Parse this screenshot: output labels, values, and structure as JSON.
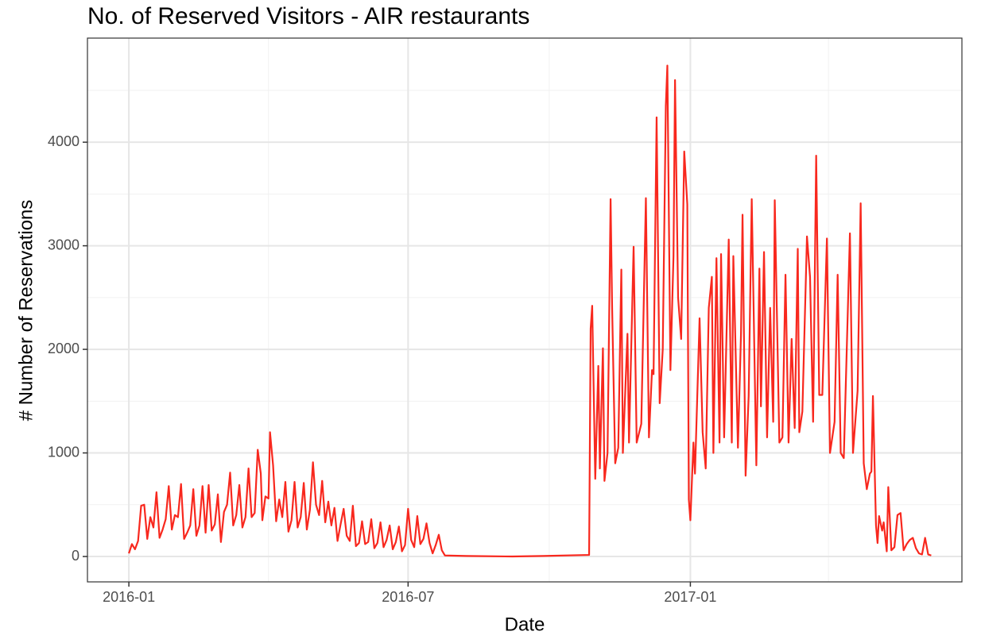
{
  "chart_data": {
    "type": "line",
    "title": "No. of Reserved Visitors - AIR restaurants",
    "x_label": "Date",
    "y_label": "# Number of Reservations",
    "color": "#f8281e",
    "grid": true,
    "xlim": [
      -27,
      543
    ],
    "ylim": [
      -245,
      5005
    ],
    "xticks": [
      {
        "value": 0,
        "label": "2016-01"
      },
      {
        "value": 182,
        "label": "2016-07"
      },
      {
        "value": 366,
        "label": "2017-01"
      }
    ],
    "x_minor_ticks": [
      91,
      274,
      456
    ],
    "yticks": [
      0,
      1000,
      2000,
      3000,
      4000
    ],
    "y_minor_ticks": [
      500,
      1500,
      2500,
      3500,
      4500
    ],
    "x": [
      0,
      2,
      4,
      6,
      8,
      10,
      12,
      14,
      16,
      18,
      20,
      22,
      24,
      26,
      28,
      30,
      32,
      34,
      36,
      38,
      40,
      42,
      44,
      46,
      48,
      50,
      52,
      54,
      56,
      58,
      60,
      62,
      64,
      66,
      68,
      70,
      72,
      74,
      76,
      78,
      80,
      82,
      84,
      86,
      87,
      89,
      91,
      92,
      94,
      96,
      98,
      100,
      102,
      104,
      106,
      108,
      110,
      112,
      114,
      116,
      118,
      120,
      122,
      124,
      126,
      128,
      130,
      132,
      134,
      136,
      138,
      140,
      142,
      144,
      146,
      148,
      150,
      152,
      154,
      156,
      158,
      160,
      162,
      164,
      166,
      168,
      170,
      172,
      174,
      176,
      178,
      180,
      182,
      184,
      186,
      188,
      190,
      192,
      194,
      196,
      198,
      200,
      202,
      204,
      206,
      220,
      250,
      270,
      300,
      301,
      302,
      304,
      306,
      307,
      309,
      310,
      312,
      314,
      315,
      317,
      319,
      321,
      322,
      325,
      326,
      329,
      331,
      334,
      337,
      339,
      341,
      342,
      344,
      346,
      348,
      350,
      351,
      353,
      355,
      356,
      358,
      360,
      362,
      364,
      365,
      366,
      368,
      369,
      372,
      374,
      376,
      378,
      380,
      381,
      383,
      385,
      386,
      388,
      391,
      393,
      394,
      397,
      399,
      400,
      402,
      404,
      406,
      409,
      411,
      412,
      414,
      416,
      418,
      420,
      421,
      424,
      426,
      428,
      430,
      432,
      434,
      436,
      437,
      439,
      442,
      444,
      446,
      448,
      450,
      452,
      455,
      457,
      460,
      462,
      464,
      466,
      470,
      472,
      475,
      477,
      479,
      481,
      483,
      484,
      485,
      487,
      488,
      489,
      491,
      492,
      494,
      495,
      497,
      499,
      501,
      503,
      505,
      507,
      509,
      511,
      513,
      515,
      517,
      519,
      521,
      523
    ],
    "values": [
      30,
      120,
      70,
      150,
      490,
      500,
      170,
      380,
      280,
      620,
      180,
      260,
      360,
      680,
      260,
      400,
      380,
      700,
      170,
      230,
      300,
      650,
      200,
      300,
      680,
      230,
      690,
      250,
      310,
      600,
      140,
      430,
      500,
      810,
      300,
      400,
      690,
      280,
      380,
      850,
      380,
      420,
      1030,
      800,
      350,
      580,
      560,
      1200,
      880,
      340,
      550,
      380,
      720,
      240,
      350,
      720,
      280,
      380,
      710,
      260,
      450,
      910,
      500,
      400,
      730,
      330,
      530,
      300,
      470,
      150,
      310,
      460,
      200,
      150,
      490,
      100,
      130,
      340,
      120,
      140,
      360,
      80,
      130,
      330,
      90,
      160,
      300,
      70,
      140,
      290,
      50,
      110,
      460,
      160,
      90,
      390,
      120,
      170,
      320,
      130,
      30,
      110,
      210,
      60,
      10,
      5,
      0,
      5,
      15,
      2200,
      2420,
      750,
      1840,
      850,
      2010,
      730,
      1000,
      3450,
      2400,
      900,
      1050,
      2770,
      1000,
      2150,
      1100,
      2990,
      1100,
      1280,
      3460,
      1150,
      1800,
      1760,
      4240,
      1480,
      2000,
      4350,
      4740,
      1800,
      2900,
      4600,
      2500,
      2100,
      3910,
      3400,
      550,
      350,
      1100,
      800,
      2300,
      1200,
      850,
      2400,
      2700,
      1000,
      2880,
      1100,
      2920,
      1150,
      3060,
      1100,
      2900,
      1050,
      2150,
      3300,
      780,
      1550,
      3450,
      880,
      2780,
      1450,
      2940,
      1150,
      2400,
      1300,
      3440,
      1100,
      1150,
      2720,
      1100,
      2100,
      1240,
      2970,
      1200,
      1400,
      3090,
      2700,
      1300,
      3870,
      1560,
      1560,
      3070,
      1000,
      1300,
      2720,
      1000,
      950,
      3120,
      1000,
      1600,
      3410,
      900,
      650,
      800,
      820,
      1550,
      300,
      130,
      390,
      250,
      330,
      50,
      670,
      60,
      90,
      400,
      420,
      60,
      120,
      160,
      180,
      80,
      30,
      20,
      180,
      20,
      10
    ]
  }
}
